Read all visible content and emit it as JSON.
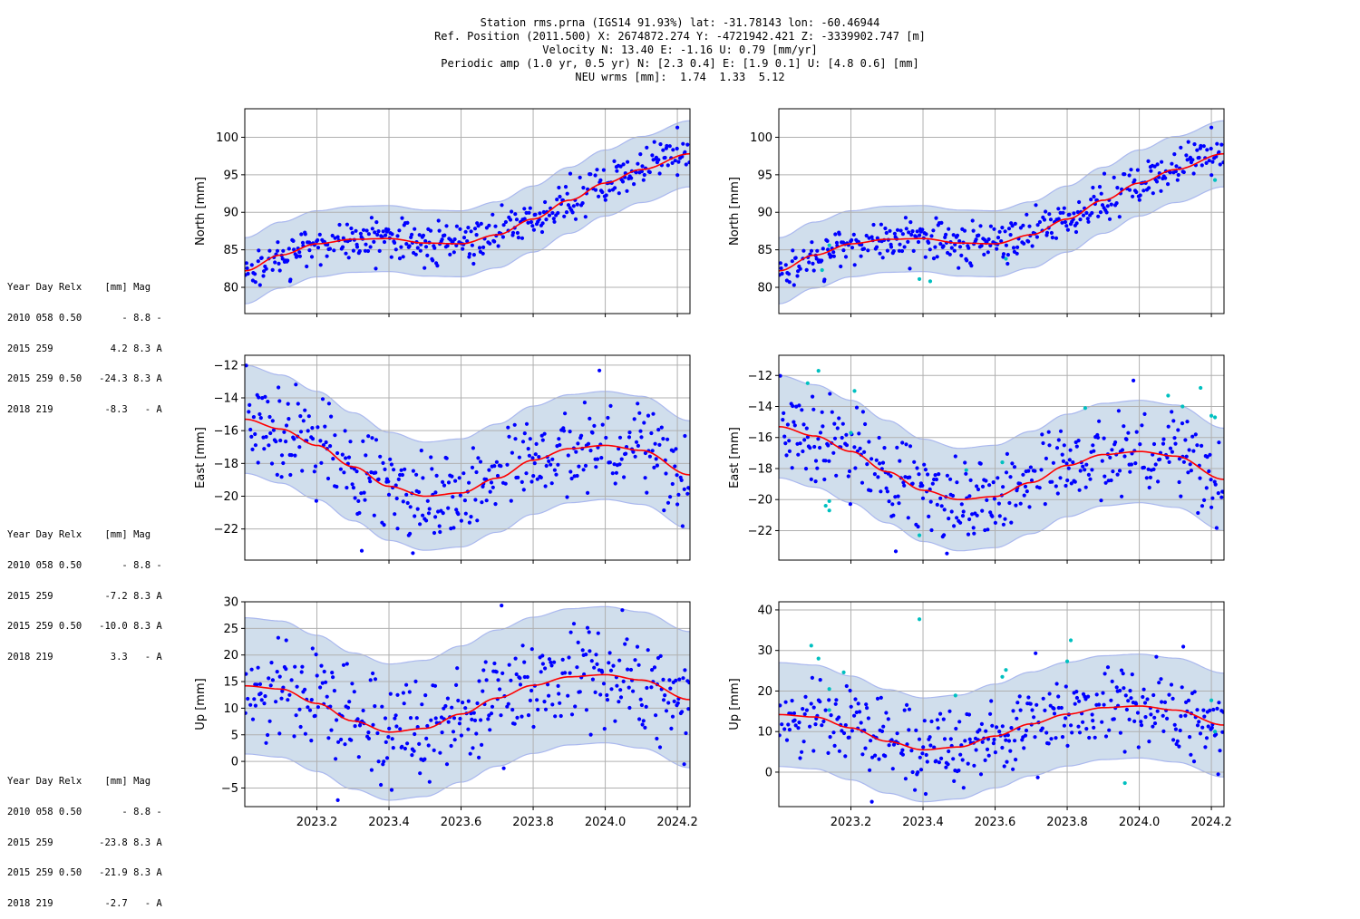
{
  "header": {
    "lines": [
      "Station rms.prna (IGS14 91.93%) lat: -31.78143 lon: -60.46944",
      "Ref. Position (2011.500) X: 2674872.274 Y: -4721942.421 Z: -3339902.747 [m]",
      "Velocity N: 13.40 E: -1.16 U: 0.79 [mm/yr]",
      "Periodic amp (1.0 yr, 0.5 yr) N: [2.3 0.4] E: [1.9 0.1] U: [4.8 0.6] [mm]",
      "NEU wrms [mm]:  1.74  1.33  5.12"
    ]
  },
  "jump_tables": [
    {
      "component": "north",
      "header": "Year Day Relx    [mm] Mag",
      "rows": [
        "2010 058 0.50       - 8.8 -",
        "2015 259          4.2 8.3 A",
        "2015 259 0.50   -24.3 8.3 A",
        "2018 219         -8.3   - A"
      ]
    },
    {
      "component": "east",
      "header": "Year Day Relx    [mm] Mag",
      "rows": [
        "2010 058 0.50       - 8.8 -",
        "2015 259         -7.2 8.3 A",
        "2015 259 0.50   -10.0 8.3 A",
        "2018 219          3.3   - A"
      ]
    },
    {
      "component": "up",
      "header": "Year Day Relx    [mm] Mag",
      "rows": [
        "2010 058 0.50       - 8.8 -",
        "2015 259        -23.8 8.3 A",
        "2015 259 0.50   -21.9 8.3 A",
        "2018 219         -2.7   - A"
      ]
    }
  ],
  "colors": {
    "inlier": "#0000ff",
    "outlier": "#00c0c0",
    "model": "#ff0000",
    "band_fill": "#b0c8e0",
    "band_edge": "#aab8ee",
    "grid": "#b0b0b0"
  },
  "chart_data": [
    {
      "type": "scatter",
      "panel": "north-left",
      "ylabel": "North [mm]",
      "xlim": [
        2023.0,
        2024.235
      ],
      "ylim": [
        76.5,
        103.8
      ],
      "xticks": [
        2023.2,
        2023.4,
        2023.6,
        2023.8,
        2024.0,
        2024.2
      ],
      "show_xtick_labels": false,
      "yticks": [
        80,
        85,
        90,
        95,
        100
      ],
      "grid": true,
      "model": {
        "x": [
          2023.0,
          2023.1,
          2023.2,
          2023.3,
          2023.4,
          2023.5,
          2023.6,
          2023.7,
          2023.8,
          2023.9,
          2024.0,
          2024.1,
          2024.235
        ],
        "y": [
          82.2,
          84.3,
          85.8,
          86.4,
          86.5,
          85.9,
          85.8,
          87.0,
          89.1,
          91.6,
          93.9,
          95.7,
          97.8
        ]
      },
      "band": {
        "half_width": 4.4
      },
      "noise": 1.3,
      "n_points": 420,
      "outliers": [],
      "special_points": [
        [
          2024.2,
          101.3
        ]
      ]
    },
    {
      "type": "scatter",
      "panel": "north-right",
      "ylabel": "North [mm]",
      "xlim": [
        2023.0,
        2024.235
      ],
      "ylim": [
        76.5,
        103.8
      ],
      "xticks": [
        2023.2,
        2023.4,
        2023.6,
        2023.8,
        2024.0,
        2024.2
      ],
      "show_xtick_labels": false,
      "yticks": [
        80,
        85,
        90,
        95,
        100
      ],
      "grid": true,
      "model": {
        "x": [
          2023.0,
          2023.1,
          2023.2,
          2023.3,
          2023.4,
          2023.5,
          2023.6,
          2023.7,
          2023.8,
          2023.9,
          2024.0,
          2024.1,
          2024.235
        ],
        "y": [
          82.2,
          84.3,
          85.8,
          86.4,
          86.5,
          85.9,
          85.8,
          87.0,
          89.1,
          91.6,
          93.9,
          95.7,
          97.8
        ]
      },
      "band": {
        "half_width": 4.4
      },
      "noise": 1.3,
      "n_points": 420,
      "outliers": [
        [
          2023.14,
          85.6
        ],
        [
          2023.12,
          82.3
        ],
        [
          2023.39,
          81.1
        ],
        [
          2023.42,
          80.8
        ],
        [
          2023.63,
          83.8
        ],
        [
          2024.21,
          94.3
        ]
      ],
      "special_points": [
        [
          2024.2,
          101.3
        ]
      ]
    },
    {
      "type": "scatter",
      "panel": "east-left",
      "ylabel": "East [mm]",
      "xlim": [
        2023.0,
        2024.235
      ],
      "ylim": [
        -23.9,
        -11.4
      ],
      "xticks": [
        2023.2,
        2023.4,
        2023.6,
        2023.8,
        2024.0,
        2024.2
      ],
      "show_xtick_labels": false,
      "yticks": [
        -12,
        -14,
        -16,
        -18,
        -20,
        -22
      ],
      "grid": true,
      "model": {
        "x": [
          2023.0,
          2023.1,
          2023.2,
          2023.3,
          2023.4,
          2023.5,
          2023.6,
          2023.7,
          2023.8,
          2023.9,
          2024.0,
          2024.1,
          2024.235
        ],
        "y": [
          -15.3,
          -15.9,
          -16.9,
          -18.2,
          -19.4,
          -20.0,
          -19.8,
          -18.9,
          -17.8,
          -17.1,
          -16.9,
          -17.2,
          -18.7
        ]
      },
      "band": {
        "half_width": 3.3
      },
      "noise": 1.4,
      "n_points": 420,
      "outliers": [],
      "special_points": []
    },
    {
      "type": "scatter",
      "panel": "east-right",
      "ylabel": "East [mm]",
      "xlim": [
        2023.0,
        2024.235
      ],
      "ylim": [
        -23.9,
        -10.7
      ],
      "xticks": [
        2023.2,
        2023.4,
        2023.6,
        2023.8,
        2024.0,
        2024.2
      ],
      "show_xtick_labels": false,
      "yticks": [
        -12,
        -14,
        -16,
        -18,
        -20,
        -22
      ],
      "grid": true,
      "model": {
        "x": [
          2023.0,
          2023.1,
          2023.2,
          2023.3,
          2023.4,
          2023.5,
          2023.6,
          2023.7,
          2023.8,
          2023.9,
          2024.0,
          2024.1,
          2024.235
        ],
        "y": [
          -15.3,
          -15.9,
          -16.9,
          -18.2,
          -19.4,
          -20.0,
          -19.8,
          -18.9,
          -17.8,
          -17.1,
          -16.9,
          -17.2,
          -18.7
        ]
      },
      "band": {
        "half_width": 3.3
      },
      "noise": 1.4,
      "n_points": 420,
      "outliers": [
        [
          2023.11,
          -11.7
        ],
        [
          2023.08,
          -12.5
        ],
        [
          2023.21,
          -13.0
        ],
        [
          2023.13,
          -20.4
        ],
        [
          2023.14,
          -20.7
        ],
        [
          2023.14,
          -20.1
        ],
        [
          2023.39,
          -22.3
        ],
        [
          2023.2,
          -15.7
        ],
        [
          2023.62,
          -17.6
        ],
        [
          2023.85,
          -14.1
        ],
        [
          2024.08,
          -13.3
        ],
        [
          2024.17,
          -12.8
        ],
        [
          2024.2,
          -14.6
        ],
        [
          2024.21,
          -14.7
        ],
        [
          2024.12,
          -14.0
        ],
        [
          2023.52,
          -18.1
        ]
      ],
      "special_points": []
    },
    {
      "type": "scatter",
      "panel": "up-left",
      "ylabel": "Up [mm]",
      "xlim": [
        2023.0,
        2024.235
      ],
      "ylim": [
        -8.5,
        30.0
      ],
      "xticks": [
        2023.2,
        2023.4,
        2023.6,
        2023.8,
        2024.0,
        2024.2
      ],
      "show_xtick_labels": true,
      "xticklabels": [
        "2023.2",
        "2023.4",
        "2023.6",
        "2023.8",
        "2024.0",
        "2024.2"
      ],
      "yticks": [
        30,
        25,
        20,
        15,
        10,
        5,
        0,
        -5
      ],
      "grid": true,
      "model": {
        "x": [
          2023.0,
          2023.1,
          2023.2,
          2023.3,
          2023.4,
          2023.5,
          2023.6,
          2023.7,
          2023.8,
          2023.9,
          2024.0,
          2024.1,
          2024.235
        ],
        "y": [
          14.2,
          13.6,
          10.9,
          7.6,
          5.5,
          6.2,
          8.9,
          11.9,
          14.3,
          15.9,
          16.3,
          15.3,
          11.6
        ]
      },
      "band": {
        "half_width": 12.8
      },
      "noise": 5.0,
      "n_points": 420,
      "outliers": [],
      "special_points": []
    },
    {
      "type": "scatter",
      "panel": "up-right",
      "ylabel": "Up [mm]",
      "xlim": [
        2023.0,
        2024.235
      ],
      "ylim": [
        -8.5,
        42.0
      ],
      "xticks": [
        2023.2,
        2023.4,
        2023.6,
        2023.8,
        2024.0,
        2024.2
      ],
      "show_xtick_labels": true,
      "xticklabels": [
        "2023.2",
        "2023.4",
        "2023.6",
        "2023.8",
        "2024.0",
        "2024.2"
      ],
      "yticks": [
        40,
        30,
        20,
        10,
        0
      ],
      "grid": true,
      "model": {
        "x": [
          2023.0,
          2023.1,
          2023.2,
          2023.3,
          2023.4,
          2023.5,
          2023.6,
          2023.7,
          2023.8,
          2023.9,
          2024.0,
          2024.1,
          2024.235
        ],
        "y": [
          14.2,
          13.6,
          10.9,
          7.6,
          5.5,
          6.2,
          8.9,
          11.9,
          14.3,
          15.9,
          16.3,
          15.3,
          11.6
        ]
      },
      "band": {
        "half_width": 12.8
      },
      "noise": 5.0,
      "n_points": 420,
      "outliers": [
        [
          2023.39,
          37.7
        ],
        [
          2023.09,
          31.2
        ],
        [
          2023.11,
          28.0
        ],
        [
          2023.18,
          24.6
        ],
        [
          2023.81,
          32.5
        ],
        [
          2023.8,
          27.3
        ],
        [
          2024.2,
          17.7
        ],
        [
          2023.96,
          -2.7
        ],
        [
          2024.21,
          10.0
        ],
        [
          2023.63,
          25.2
        ],
        [
          2023.14,
          20.5
        ],
        [
          2023.14,
          15.3
        ],
        [
          2023.62,
          23.5
        ],
        [
          2023.49,
          18.9
        ]
      ],
      "special_points": []
    }
  ]
}
